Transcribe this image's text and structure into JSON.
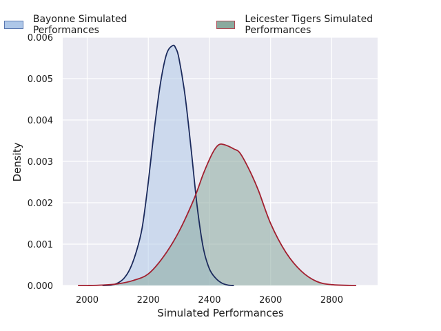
{
  "chart_data": {
    "type": "area",
    "xlabel": "Simulated Performances",
    "ylabel": "Density",
    "xlim": [
      1920,
      2950
    ],
    "ylim": [
      0,
      0.006
    ],
    "xticks": [
      2000,
      2200,
      2400,
      2600,
      2800
    ],
    "xtick_labels": [
      "2000",
      "2200",
      "2400",
      "2600",
      "2800"
    ],
    "yticks": [
      0,
      0.001,
      0.002,
      0.003,
      0.004,
      0.005,
      0.006
    ],
    "ytick_labels": [
      "0.000",
      "0.001",
      "0.002",
      "0.003",
      "0.004",
      "0.005",
      "0.006"
    ],
    "grid": true,
    "legend_position": "top",
    "series": [
      {
        "name": "Bayonne Simulated Performances",
        "line_color": "#1b2a5c",
        "fill_color": "#aec7e8",
        "x": [
          2050,
          2080,
          2100,
          2120,
          2140,
          2160,
          2180,
          2200,
          2220,
          2240,
          2260,
          2280,
          2290,
          2300,
          2320,
          2340,
          2360,
          2380,
          2400,
          2420,
          2440,
          2460,
          2480
        ],
        "y": [
          0.0,
          1e-05,
          6e-05,
          0.00017,
          0.0004,
          0.0008,
          0.0014,
          0.0025,
          0.0038,
          0.0049,
          0.0056,
          0.0058,
          0.00573,
          0.0055,
          0.0046,
          0.0033,
          0.0019,
          0.0009,
          0.0004,
          0.00018,
          6e-05,
          1e-05,
          0.0
        ]
      },
      {
        "name": "Leicester Tigers Simulated Performances",
        "line_color": "#a21f2f",
        "fill_color": "#8aaa9e",
        "x": [
          1970,
          2000,
          2050,
          2100,
          2150,
          2200,
          2250,
          2300,
          2350,
          2380,
          2410,
          2430,
          2450,
          2480,
          2500,
          2530,
          2560,
          2600,
          2650,
          2700,
          2750,
          2800,
          2880
        ],
        "y": [
          0.0,
          0.0,
          1e-05,
          4e-05,
          0.00012,
          0.00028,
          0.0007,
          0.0013,
          0.0021,
          0.0027,
          0.0032,
          0.0034,
          0.0034,
          0.0033,
          0.0032,
          0.0028,
          0.0023,
          0.0015,
          0.0008,
          0.00035,
          0.0001,
          2e-05,
          0.0
        ]
      }
    ]
  }
}
